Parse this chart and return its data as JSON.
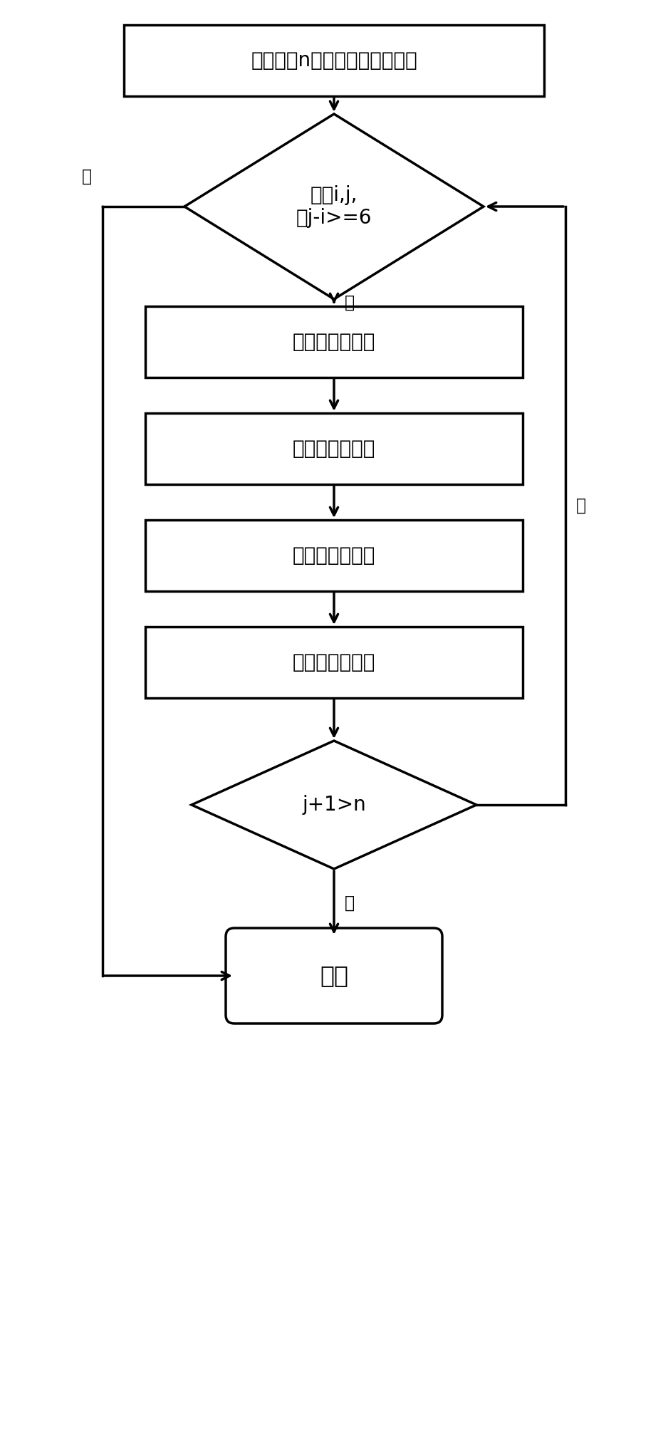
{
  "title": "随机输入n个核糖核酸碱基序列",
  "diamond1_text": "存在i,j,\n且j-i>=6",
  "box1_text": "连续堆叠的查找",
  "box2_text": "连续堆叠的确定",
  "box3_text": "扩展结构的查找",
  "box4_text": "扩展结构的确定",
  "diamond2_text": "j+1>n",
  "end_text": "结束",
  "yes_label": "是",
  "no_label": "否",
  "bg_color": "#ffffff",
  "box_facecolor": "#ffffff",
  "box_edgecolor": "#000000",
  "text_color": "#000000",
  "arrow_color": "#000000",
  "line_width": 2.5,
  "font_size": 20,
  "label_font_size": 17
}
